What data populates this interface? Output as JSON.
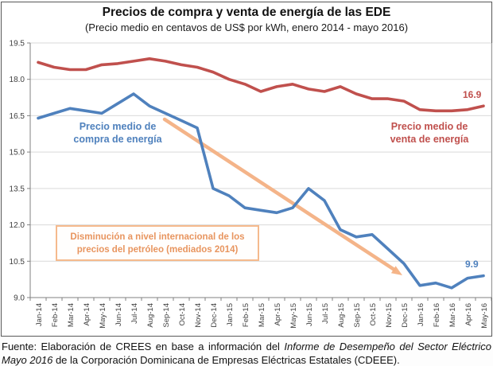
{
  "chart_data": {
    "type": "line",
    "title": "Precios de compra y venta de energía de las EDE",
    "subtitle": "(Precio medio en centavos de US$ por kWh, enero 2014 - mayo 2016)",
    "categories": [
      "Jan-14",
      "Feb-14",
      "Mar-14",
      "Apr-14",
      "May-14",
      "Jun-14",
      "Jul-14",
      "Aug-14",
      "Sep-14",
      "Oct-14",
      "Nov-14",
      "Dec-14",
      "Jan-15",
      "Feb-15",
      "Mar-15",
      "Apr-15",
      "May-15",
      "Jun-15",
      "Jul-15",
      "Aug-15",
      "Sep-15",
      "Oct-15",
      "Nov-15",
      "Dec-15",
      "Jan-16",
      "Feb-16",
      "Mar-16",
      "Apr-16",
      "May-16"
    ],
    "series": [
      {
        "id": "venta",
        "name": "Precio medio de venta de energía",
        "color": "#C0504D",
        "values": [
          18.7,
          18.5,
          18.4,
          18.4,
          18.6,
          18.65,
          18.75,
          18.85,
          18.75,
          18.6,
          18.5,
          18.3,
          18.0,
          17.8,
          17.5,
          17.7,
          17.8,
          17.6,
          17.5,
          17.7,
          17.4,
          17.2,
          17.2,
          17.1,
          16.75,
          16.7,
          16.7,
          16.75,
          16.9
        ]
      },
      {
        "id": "compra",
        "name": "Precio medio de compra de energía",
        "color": "#4F81BD",
        "values": [
          16.4,
          16.6,
          16.8,
          16.7,
          16.6,
          17.0,
          17.4,
          16.9,
          16.6,
          16.3,
          16.0,
          13.5,
          13.2,
          12.7,
          12.6,
          12.5,
          12.7,
          13.5,
          13.0,
          11.8,
          11.5,
          11.6,
          11.0,
          10.4,
          9.5,
          9.6,
          9.4,
          9.8,
          9.9
        ]
      }
    ],
    "xlabel": "",
    "ylabel": "",
    "ylim": [
      9.0,
      19.5
    ],
    "ytick_step": 1.5,
    "grid": true,
    "legend": "none (series labeled directly on chart)",
    "annotations": {
      "compra_label_line1": "Precio medio de",
      "compra_label_line2": "compra de energía",
      "venta_label_line1": "Precio medio de",
      "venta_label_line2": "venta de energía",
      "venta_end_value": "16.9",
      "compra_end_value": "9.9",
      "note_line1": "Disminución a nivel internacional de los",
      "note_line2": "precios del petróleo (mediados 2014)",
      "arrow": "orange diagonal arrow from mid-2014 price level pointing down to early-2016 low"
    }
  },
  "footer": {
    "line1_regular": "Fuente: Elaboración de CREES en base a información del ",
    "line1_italic": "Informe de Desempeño del Sector Eléctrico",
    "line2_italic": "Mayo 2016",
    "line2_regular": " de la Corporación Dominicana de Empresas Eléctricas Estatales (CDEEE)."
  },
  "colors": {
    "compra_blue": "#4F81BD",
    "venta_red": "#C0504D",
    "annotation_orange": "#F4B183",
    "annotation_orange_text": "#E8955F",
    "gridline": "#D9D9D9",
    "axis": "#808080"
  }
}
